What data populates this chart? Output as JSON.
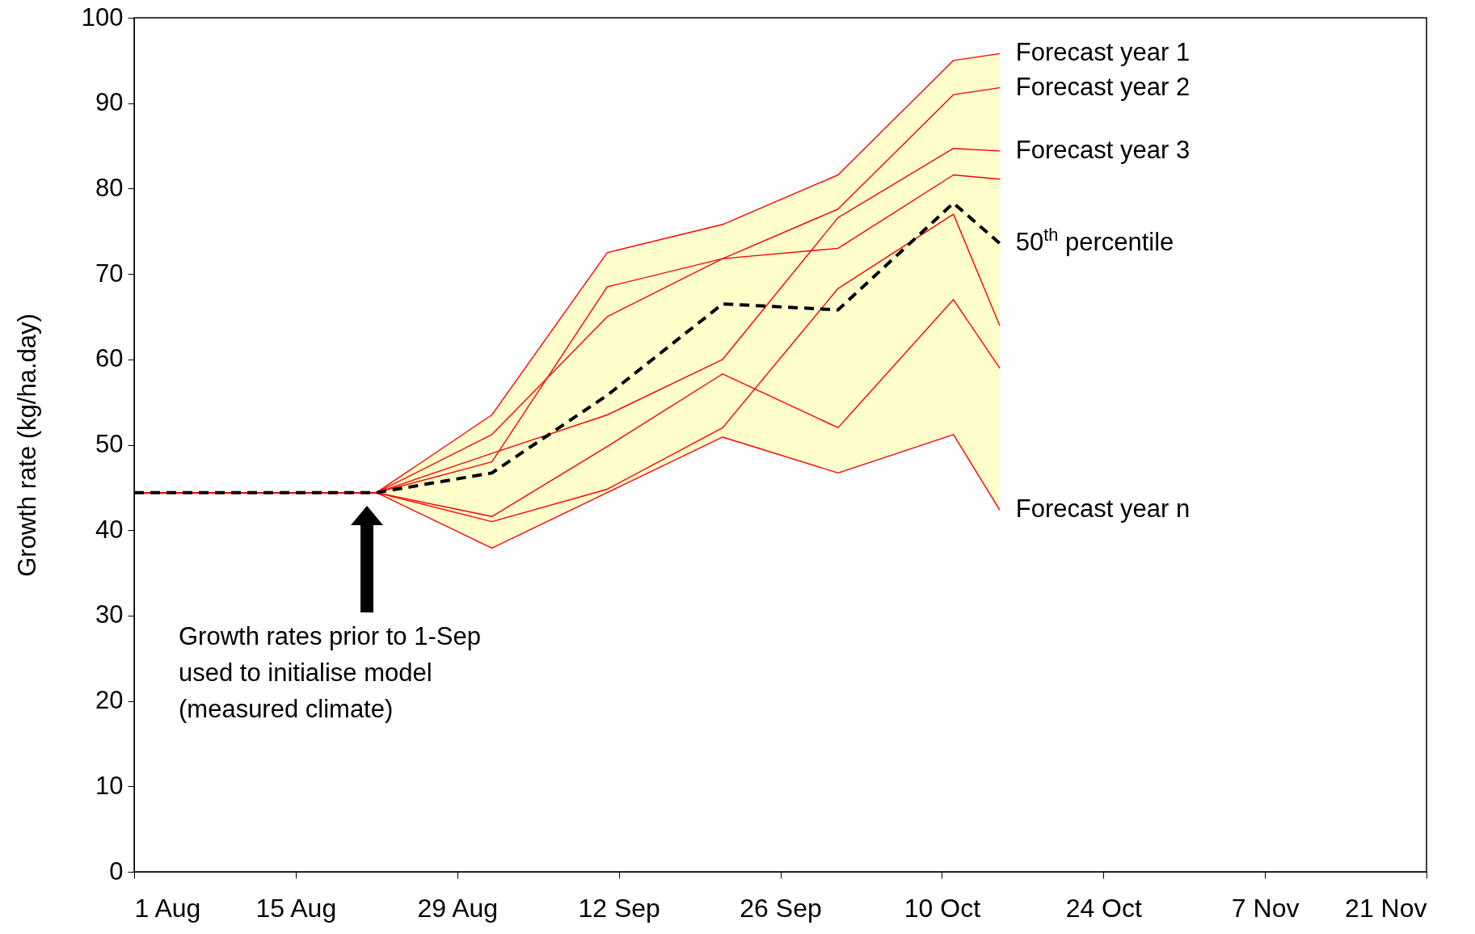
{
  "chart_data": {
    "type": "line",
    "ylabel": "Growth rate (kg/ha.day)",
    "x": [
      "--08-01",
      "--08-22",
      "--09-01",
      "--09-11",
      "--09-21",
      "--10-01",
      "--10-11",
      "--10-15"
    ],
    "series": [
      {
        "name": "Forecast year 1",
        "color": "#ff0000",
        "values": [
          44.4,
          44.4,
          53.5,
          72.5,
          75.8,
          81.6,
          95,
          95.8
        ]
      },
      {
        "name": "Forecast year 2",
        "color": "#ff0000",
        "values": [
          44.4,
          44.4,
          51.2,
          65,
          71.8,
          77.6,
          91,
          91.8
        ]
      },
      {
        "color": "#ff0000",
        "values": [
          44.4,
          44.4,
          48,
          68.5,
          71.8,
          73,
          81.6,
          81.1
        ]
      },
      {
        "name": "Forecast year 3",
        "color": "#ff0000",
        "values": [
          44.4,
          44.4,
          49,
          53.5,
          60,
          76.6,
          84.7,
          84.4
        ]
      },
      {
        "color": "#ff0000",
        "values": [
          44.4,
          44.4,
          41.6,
          49.8,
          58.3,
          52,
          67,
          59
        ]
      },
      {
        "color": "#ff0000",
        "values": [
          44.4,
          44.4,
          41,
          44.8,
          52,
          68.3,
          77,
          64
        ]
      },
      {
        "name": "Forecast year n",
        "color": "#ff0000",
        "values": [
          44.4,
          44.4,
          37.9,
          44.4,
          50.9,
          46.7,
          51.2,
          42.4
        ]
      },
      {
        "name": "50$^{th}$ percentile",
        "color": "#000000",
        "line_style": "dashed",
        "values": [
          44.4,
          44.4,
          46.7,
          55.8,
          66.5,
          65.8,
          78.3,
          73.6
        ],
        "lower": [
          null,
          44.4,
          37.9,
          44.4,
          50.9,
          46.7,
          51.2,
          42.4
        ],
        "upper": [
          null,
          44.4,
          53.5,
          72.5,
          75.8,
          81.6,
          95,
          95.8
        ]
      }
    ],
    "xlim": [
      "--08-01",
      "--11-21"
    ],
    "xticks": [
      {
        "value": "--08-01",
        "label": "1 Aug"
      },
      {
        "value": "--08-15",
        "label": "15 Aug"
      },
      {
        "value": "--08-29",
        "label": "29 Aug"
      },
      {
        "value": "--09-12",
        "label": "12 Sep"
      },
      {
        "value": "--09-26",
        "label": "26 Sep"
      },
      {
        "value": "--10-10",
        "label": "10 Oct"
      },
      {
        "value": "--10-24",
        "label": "24 Oct"
      },
      {
        "value": "--11-07",
        "label": "7 Nov"
      },
      {
        "value": "--11-21",
        "label": "21 Nov"
      }
    ],
    "ylim": [
      0,
      100
    ],
    "yticks": [
      0,
      10,
      20,
      30,
      40,
      50,
      60,
      70,
      80,
      90,
      100
    ],
    "grid": false,
    "marker": "none",
    "line_style": "solid",
    "annotations": [
      "Growth rates prior to 1-Sep\nused to initialise model\n(measured climate)"
    ]
  }
}
